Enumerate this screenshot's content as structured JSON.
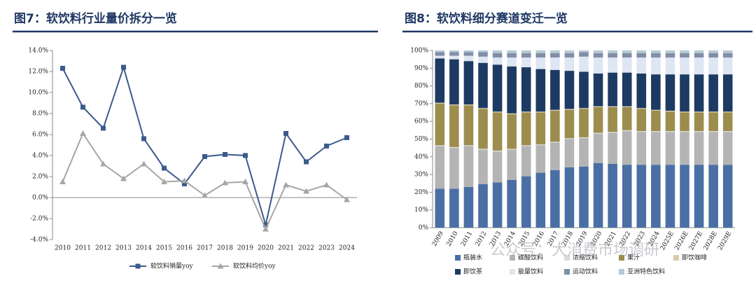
{
  "chart_data": [
    {
      "type": "line",
      "title": "图7：软饮料行业量价拆分一览",
      "categories": [
        "2010",
        "2011",
        "2012",
        "2013",
        "2014",
        "2015",
        "2016",
        "2017",
        "2018",
        "2019",
        "2020",
        "2021",
        "2022",
        "2023",
        "2024"
      ],
      "series": [
        {
          "name": "软饮料销量yoy",
          "color": "#3b5b8e",
          "marker": "square",
          "values": [
            12.3,
            8.6,
            6.6,
            12.4,
            5.6,
            2.8,
            1.3,
            3.9,
            4.1,
            4.0,
            -2.6,
            6.1,
            3.4,
            4.9,
            5.7
          ]
        },
        {
          "name": "软饮料均价yoy",
          "color": "#a6a6a6",
          "marker": "triangle",
          "values": [
            1.5,
            6.1,
            3.2,
            1.8,
            3.2,
            1.5,
            1.6,
            0.2,
            1.4,
            1.5,
            -3.0,
            1.2,
            0.6,
            1.2,
            -0.2
          ]
        }
      ],
      "ylim": [
        -4,
        14
      ],
      "yticks": [
        {
          "value": -4,
          "label": "-4.0%"
        },
        {
          "value": -2,
          "label": "-2.0%"
        },
        {
          "value": 0,
          "label": "0.0%"
        },
        {
          "value": 2,
          "label": "2.0%"
        },
        {
          "value": 4,
          "label": "4.0%"
        },
        {
          "value": 6,
          "label": "6.0%"
        },
        {
          "value": 8,
          "label": "8.0%"
        },
        {
          "value": 10,
          "label": "10.0%"
        },
        {
          "value": 12,
          "label": "12.0%"
        },
        {
          "value": 14,
          "label": "14.0%"
        }
      ],
      "grid": false,
      "legend": "bottom"
    },
    {
      "type": "stacked-bar",
      "title": "图8：软饮料细分赛道变迁一览",
      "categories": [
        "2009",
        "2010",
        "2011",
        "2012",
        "2013",
        "2014",
        "2015",
        "2016",
        "2017",
        "2018",
        "2019",
        "2020",
        "2021",
        "2022",
        "2023",
        "2024",
        "2025E",
        "2026E",
        "2027E",
        "2028E",
        "2029E"
      ],
      "series": [
        {
          "name": "瓶装水",
          "color": "#4a6fa5",
          "values": [
            22,
            22,
            23,
            24.5,
            25.5,
            27,
            29,
            31,
            32.5,
            34,
            34.5,
            36.5,
            36,
            35.5,
            35.5,
            35.5,
            35.5,
            35.5,
            35.5,
            35.5,
            35.5
          ]
        },
        {
          "name": "碳酸饮料",
          "color": "#b4b4b4",
          "values": [
            24,
            23,
            23,
            19.5,
            17.5,
            17,
            17,
            15.5,
            15.5,
            16,
            16,
            16.5,
            17.5,
            19,
            18.5,
            18.5,
            18.5,
            18.5,
            18.5,
            18.5,
            18.5
          ]
        },
        {
          "name": "浓缩饮料",
          "color": "#d9d9d9",
          "values": [
            0.5,
            0.5,
            0.5,
            0.5,
            0.5,
            0.5,
            0.5,
            0.5,
            0.5,
            0.5,
            0.5,
            0.5,
            0.5,
            0.5,
            0.5,
            0.5,
            0.5,
            0.5,
            0.5,
            0.5,
            0.5
          ]
        },
        {
          "name": "果汁",
          "color": "#9c8d4f",
          "values": [
            23.5,
            23.5,
            22.5,
            22.5,
            21.5,
            19.5,
            18.5,
            18,
            17.5,
            16,
            16,
            14.5,
            14,
            13,
            12.5,
            11.5,
            11,
            10.5,
            10.5,
            10.5,
            10.5
          ]
        },
        {
          "name": "即饮咖啡",
          "color": "#d8ccaa",
          "values": [
            0.5,
            0.5,
            0.5,
            0.5,
            0.5,
            0.5,
            0.5,
            0.5,
            0.5,
            0.5,
            0.5,
            0.5,
            0.5,
            0.5,
            0.5,
            0.5,
            0.5,
            0.5,
            0.5,
            0.5,
            0.5
          ]
        },
        {
          "name": "即饮茶",
          "color": "#1d3a63",
          "values": [
            25,
            25.5,
            24.5,
            25.5,
            26.5,
            26.5,
            25,
            24,
            22.5,
            21.5,
            20.5,
            18.5,
            19,
            19,
            19.5,
            20,
            20.5,
            21,
            21,
            21,
            21
          ]
        },
        {
          "name": "能量饮料",
          "color": "#dde6f2",
          "values": [
            1.5,
            2,
            3,
            3.5,
            4,
            5,
            5.5,
            6.5,
            7,
            7.5,
            8.5,
            9,
            8.5,
            8.5,
            9,
            9.5,
            9.5,
            9.5,
            9.5,
            9.5,
            9.5
          ]
        },
        {
          "name": "运动饮料",
          "color": "#7f8fa6",
          "values": [
            2,
            2,
            2,
            2.5,
            2.5,
            2.5,
            2.5,
            2.5,
            2.5,
            2.5,
            2.5,
            2.5,
            2.5,
            2.5,
            2.5,
            2.5,
            2.5,
            2.5,
            2.5,
            2.5,
            2.5
          ]
        },
        {
          "name": "亚洲特色饮料",
          "color": "#b7c7d6",
          "values": [
            1,
            1,
            1,
            1,
            1.5,
            1.5,
            1.5,
            1.5,
            1.5,
            1.5,
            1,
            1.5,
            1.5,
            1.5,
            1.5,
            1.5,
            1.5,
            1.5,
            1.5,
            1.5,
            1.5
          ]
        }
      ],
      "ylim": [
        0,
        100
      ],
      "yticks": [
        {
          "value": 0,
          "label": "0%"
        },
        {
          "value": 10,
          "label": "10%"
        },
        {
          "value": 20,
          "label": "20%"
        },
        {
          "value": 30,
          "label": "30%"
        },
        {
          "value": 40,
          "label": "40%"
        },
        {
          "value": 50,
          "label": "50%"
        },
        {
          "value": 60,
          "label": "60%"
        },
        {
          "value": 70,
          "label": "70%"
        },
        {
          "value": 80,
          "label": "80%"
        },
        {
          "value": 90,
          "label": "90%"
        },
        {
          "value": 100,
          "label": "100%"
        }
      ],
      "grid": false,
      "legend": "bottom"
    }
  ],
  "watermark": "公众号：大消费市场调研"
}
